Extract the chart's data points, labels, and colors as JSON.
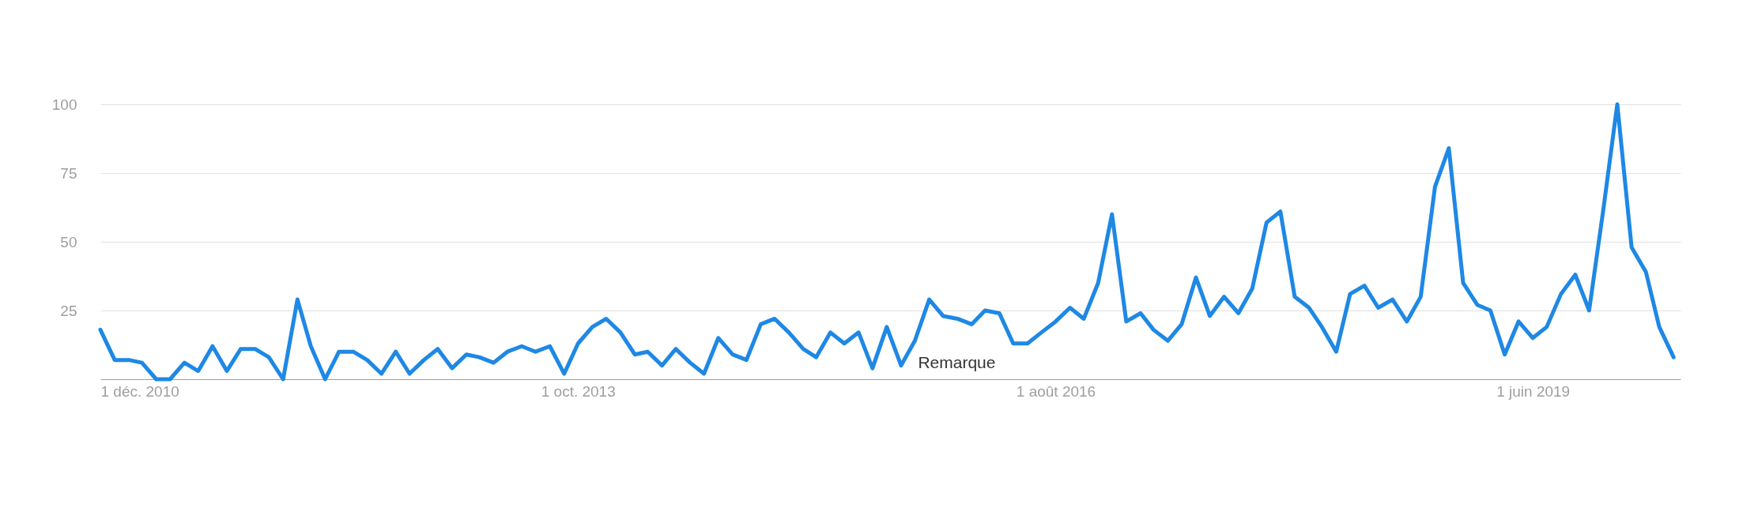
{
  "chart_data": {
    "type": "line",
    "x": [
      "2010-12",
      "2011-01",
      "2011-02",
      "2011-03",
      "2011-04",
      "2011-05",
      "2011-06",
      "2011-07",
      "2011-08",
      "2011-09",
      "2011-10",
      "2011-11",
      "2011-12",
      "2012-01",
      "2012-02",
      "2012-03",
      "2012-04",
      "2012-05",
      "2012-06",
      "2012-07",
      "2012-08",
      "2012-09",
      "2012-10",
      "2012-11",
      "2012-12",
      "2013-01",
      "2013-02",
      "2013-03",
      "2013-04",
      "2013-05",
      "2013-06",
      "2013-07",
      "2013-08",
      "2013-09",
      "2013-10",
      "2013-11",
      "2013-12",
      "2014-01",
      "2014-02",
      "2014-03",
      "2014-04",
      "2014-05",
      "2014-06",
      "2014-07",
      "2014-08",
      "2014-09",
      "2014-10",
      "2014-11",
      "2014-12",
      "2015-01",
      "2015-02",
      "2015-03",
      "2015-04",
      "2015-05",
      "2015-06",
      "2015-07",
      "2015-08",
      "2015-09",
      "2015-10",
      "2015-11",
      "2015-12",
      "2016-01",
      "2016-02",
      "2016-03",
      "2016-04",
      "2016-05",
      "2016-06",
      "2016-07",
      "2016-08",
      "2016-09",
      "2016-10",
      "2016-11",
      "2016-12",
      "2017-01",
      "2017-02",
      "2017-03",
      "2017-04",
      "2017-05",
      "2017-06",
      "2017-07",
      "2017-08",
      "2017-09",
      "2017-10",
      "2017-11",
      "2017-12",
      "2018-01",
      "2018-02",
      "2018-03",
      "2018-04",
      "2018-05",
      "2018-06",
      "2018-07",
      "2018-08",
      "2018-09",
      "2018-10",
      "2018-11",
      "2018-12",
      "2019-01",
      "2019-02",
      "2019-03",
      "2019-04",
      "2019-05",
      "2019-06",
      "2019-07",
      "2019-08",
      "2019-09",
      "2019-10",
      "2019-11",
      "2019-12",
      "2020-01",
      "2020-02",
      "2020-03",
      "2020-04"
    ],
    "series": [
      {
        "color": "#1e88e5",
        "values": [
          18,
          7,
          7,
          6,
          0,
          0,
          6,
          3,
          12,
          3,
          11,
          11,
          8,
          0,
          29,
          12,
          0,
          10,
          10,
          7,
          2,
          10,
          2,
          7,
          11,
          4,
          9,
          8,
          6,
          10,
          12,
          10,
          12,
          2,
          13,
          19,
          22,
          17,
          9,
          10,
          5,
          11,
          6,
          2,
          15,
          9,
          7,
          20,
          22,
          17,
          11,
          8,
          17,
          13,
          17,
          4,
          19,
          5,
          14,
          29,
          23,
          22,
          20,
          25,
          24,
          13,
          13,
          17,
          21,
          26,
          22,
          35,
          60,
          21,
          24,
          18,
          14,
          20,
          37,
          23,
          30,
          24,
          33,
          57,
          61,
          30,
          26,
          19,
          10,
          31,
          34,
          26,
          29,
          21,
          30,
          70,
          84,
          35,
          27,
          25,
          9,
          21,
          15,
          19,
          31,
          38,
          25,
          62,
          100,
          48,
          39,
          19,
          8
        ]
      }
    ],
    "xlim": [
      "2010-12-01",
      "2020-04-16"
    ],
    "xticks": [
      {
        "value": "2010-12-01",
        "label": "1 déc. 2010"
      },
      {
        "value": "2013-10-01",
        "label": "1 oct. 2013"
      },
      {
        "value": "2016-08-01",
        "label": "1 août 2016"
      },
      {
        "value": "2019-06-01",
        "label": "1 juin 2019"
      }
    ],
    "ylim": [
      0,
      100
    ],
    "yticks": [
      {
        "value": 0,
        "label": null
      },
      25,
      50,
      75,
      100
    ],
    "grid": "y",
    "legend": false,
    "line_style": "solid",
    "marker": "none",
    "annotations": [
      "Remarque"
    ]
  }
}
